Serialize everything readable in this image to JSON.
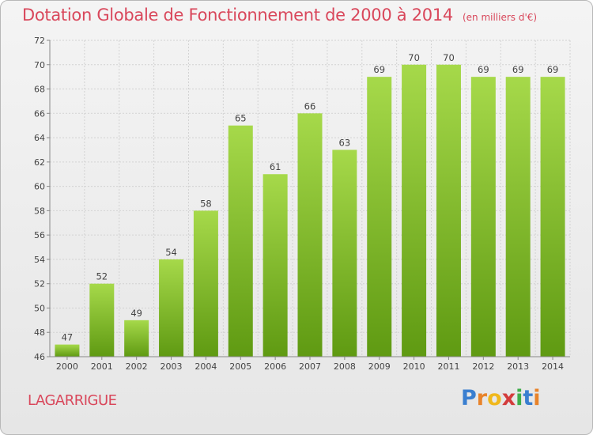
{
  "title": {
    "main": "Dotation Globale de Fonctionnement de 2000 à 2014",
    "sub": "(en milliers d'€)"
  },
  "commune": "LAGARRIGUE",
  "logo": {
    "letters": [
      "P",
      "r",
      "o",
      "x",
      "i",
      "t",
      "i"
    ],
    "colors": [
      "#3a7fd0",
      "#e8832a",
      "#f0b81c",
      "#d33c3c",
      "#3fae4a",
      "#3a7fd0",
      "#e8832a"
    ]
  },
  "colors": {
    "bar_top": "#a6d94a",
    "bar_bottom": "#5f9a12",
    "title": "#d9475b"
  },
  "chart_data": {
    "type": "bar",
    "title": "Dotation Globale de Fonctionnement de 2000 à 2014",
    "subtitle": "(en milliers d'€)",
    "xlabel": "",
    "ylabel": "",
    "categories": [
      "2000",
      "2001",
      "2002",
      "2003",
      "2004",
      "2005",
      "2006",
      "2007",
      "2008",
      "2009",
      "2010",
      "2011",
      "2012",
      "2013",
      "2014"
    ],
    "values": [
      47,
      52,
      49,
      54,
      58,
      65,
      61,
      66,
      63,
      69,
      70,
      70,
      69,
      69,
      69
    ],
    "ylim": [
      46,
      72
    ],
    "yticks": [
      46,
      48,
      50,
      52,
      54,
      56,
      58,
      60,
      62,
      64,
      66,
      68,
      70,
      72
    ],
    "grid": true
  }
}
